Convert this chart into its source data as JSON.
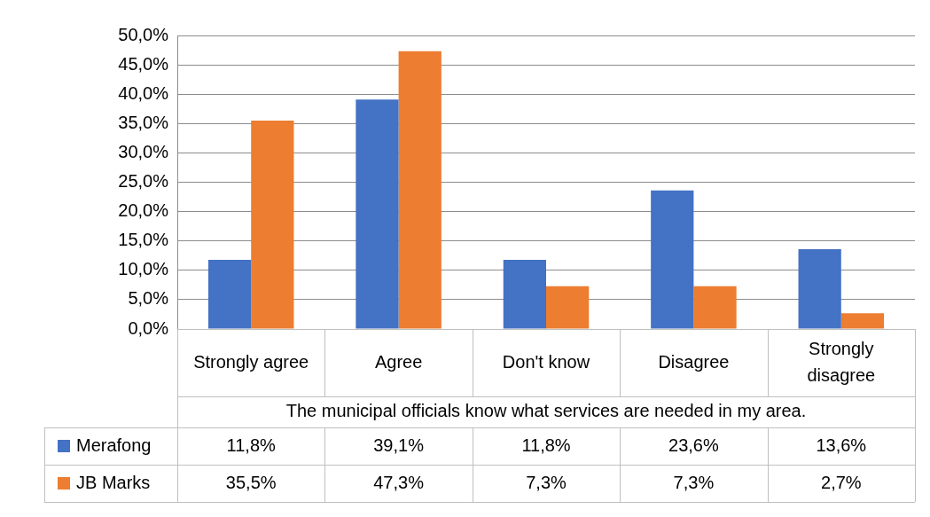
{
  "chart_data": {
    "type": "bar",
    "xlabel": "The municipal officials know what services are needed in my area.",
    "categories": [
      "Strongly agree",
      "Agree",
      "Don't know",
      "Disagree",
      "Strongly disagree"
    ],
    "series": [
      {
        "name": "Merafong",
        "color": "#4472c4",
        "values": [
          11.8,
          39.1,
          11.8,
          23.6,
          13.6
        ],
        "value_labels": [
          "11,8%",
          "39,1%",
          "11,8%",
          "23,6%",
          "13,6%"
        ]
      },
      {
        "name": "JB Marks",
        "color": "#ed7d31",
        "values": [
          35.5,
          47.3,
          7.3,
          7.3,
          2.7
        ],
        "value_labels": [
          "35,5%",
          "47,3%",
          "7,3%",
          "7,3%",
          "2,7%"
        ]
      }
    ],
    "ylim": [
      0,
      50
    ],
    "yticks": [
      {
        "value": 0,
        "label": "0,0%"
      },
      {
        "value": 5,
        "label": "5,0%"
      },
      {
        "value": 10,
        "label": "10,0%"
      },
      {
        "value": 15,
        "label": "15,0%"
      },
      {
        "value": 20,
        "label": "20,0%"
      },
      {
        "value": 25,
        "label": "25,0%"
      },
      {
        "value": 30,
        "label": "30,0%"
      },
      {
        "value": 35,
        "label": "35,0%"
      },
      {
        "value": 40,
        "label": "40,0%"
      },
      {
        "value": 45,
        "label": "45,0%"
      },
      {
        "value": 50,
        "label": "50,0%"
      }
    ],
    "grid": "y",
    "legend": "bottom"
  }
}
